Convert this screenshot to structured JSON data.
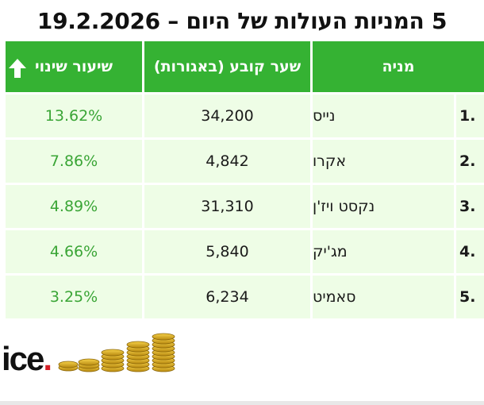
{
  "title": "5 המניות העולות של היום – 19.2.2026",
  "table": {
    "headers": {
      "stock": "מניה",
      "price": "שער קובע (באגורות)",
      "change": "שיעור שינוי"
    },
    "rows": [
      {
        "rank": "1.",
        "name": "נייס",
        "price": "34,200",
        "change": "13.62%"
      },
      {
        "rank": "2.",
        "name": "אקרו",
        "price": "4,842",
        "change": "7.86%"
      },
      {
        "rank": "3.",
        "name": "נקסט ויז'ן",
        "price": "31,310",
        "change": "4.89%"
      },
      {
        "rank": "4.",
        "name": "מג'יק",
        "price": "5,840",
        "change": "4.66%"
      },
      {
        "rank": "5.",
        "name": "סאמיט",
        "price": "6,234",
        "change": "3.25%"
      }
    ]
  },
  "logo": {
    "text": "ice",
    "dot": "."
  },
  "colors": {
    "header_bg": "#35b233",
    "row_bg": "#eefde6",
    "change_text": "#3aa536",
    "logo_dot": "#d41f26"
  },
  "icons": {
    "sort": "arrow-up-icon",
    "logo_art": "gold-coins-icon"
  }
}
